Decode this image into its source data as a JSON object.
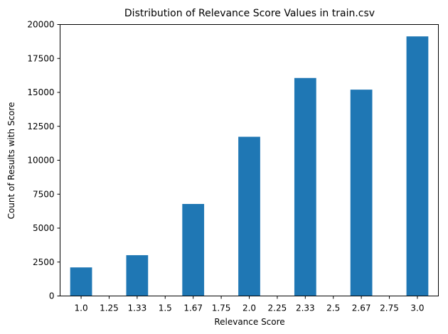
{
  "chart_data": {
    "type": "bar",
    "title": "Distribution of Relevance Score Values in train.csv",
    "xlabel": "Relevance Score",
    "ylabel": "Count of Results with Score",
    "categories": [
      "1.0",
      "1.25",
      "1.33",
      "1.5",
      "1.67",
      "1.75",
      "2.0",
      "2.25",
      "2.33",
      "2.5",
      "2.67",
      "2.75",
      "3.0"
    ],
    "values": [
      2105,
      4,
      3006,
      5,
      6780,
      4,
      11730,
      11,
      16060,
      19,
      15202,
      11,
      19125
    ],
    "ylim": [
      0,
      20000
    ],
    "yticks": [
      0,
      2500,
      5000,
      7500,
      10000,
      12500,
      15000,
      17500,
      20000
    ],
    "grid": false,
    "bar_color": "#1f77b4"
  }
}
